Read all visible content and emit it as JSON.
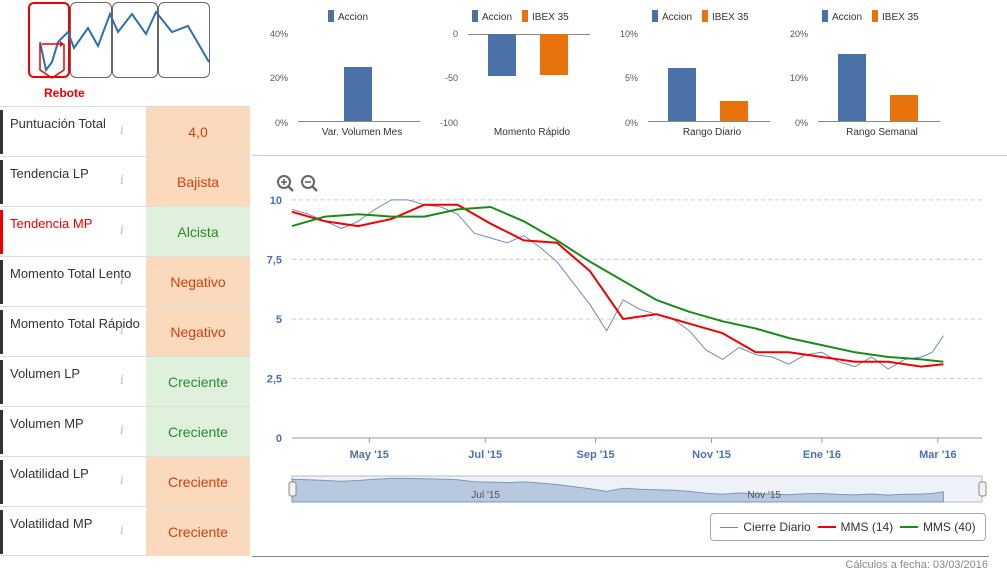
{
  "patterns": {
    "active_label": "Rebote"
  },
  "rating_rows": [
    {
      "label": "Puntuación Total",
      "value": "4,0",
      "tone": "neg",
      "highlight": false
    },
    {
      "label": "Tendencia LP",
      "value": "Bajista",
      "tone": "neg",
      "highlight": false
    },
    {
      "label": "Tendencia MP",
      "value": "Alcista",
      "tone": "pos",
      "highlight": true
    },
    {
      "label": "Momento Total Lento",
      "value": "Negativo",
      "tone": "neg",
      "highlight": false
    },
    {
      "label": "Momento Total Rápido",
      "value": "Negativo",
      "tone": "neg",
      "highlight": false
    },
    {
      "label": "Volumen LP",
      "value": "Creciente",
      "tone": "pos",
      "highlight": false
    },
    {
      "label": "Volumen MP",
      "value": "Creciente",
      "tone": "pos",
      "highlight": false
    },
    {
      "label": "Volatilidad LP",
      "value": "Creciente",
      "tone": "neg",
      "highlight": false
    },
    {
      "label": "Volatilidad MP",
      "value": "Creciente",
      "tone": "neg",
      "highlight": false
    }
  ],
  "info_icon": "i",
  "colors": {
    "accion": "#4a72a8",
    "ibex": "#e8720c",
    "red": "#e00",
    "green": "#1a8a1a",
    "price": "#6e8bb5"
  },
  "mini_charts": [
    {
      "title": "Var. Volumen Mes",
      "legend": [
        "Accion"
      ],
      "ticks": [
        "40%",
        "20%",
        "0%"
      ],
      "ymin": 0,
      "ymax": 40,
      "values": [
        25
      ]
    },
    {
      "title": "Momento Rápido",
      "legend": [
        "Accion",
        "IBEX 35"
      ],
      "ticks": [
        "0",
        "-50",
        "-100"
      ],
      "ymin": -100,
      "ymax": 0,
      "values": [
        -48,
        -47
      ]
    },
    {
      "title": "Rango Diario",
      "legend": [
        "Accion",
        "IBEX 35"
      ],
      "ticks": [
        "10%",
        "5%",
        "0%"
      ],
      "ymin": 0,
      "ymax": 10,
      "values": [
        6.1,
        2.3
      ]
    },
    {
      "title": "Rango Semanal",
      "legend": [
        "Accion",
        "IBEX 35"
      ],
      "ticks": [
        "20%",
        "10%",
        "0%"
      ],
      "ymin": 0,
      "ymax": 20,
      "values": [
        15.5,
        6
      ]
    }
  ],
  "chart_data": {
    "type": "line",
    "y_ticks": [
      "10",
      "7,5",
      "5",
      "2,5",
      "0"
    ],
    "y_tick_values": [
      10,
      7.5,
      5,
      2.5,
      0
    ],
    "ylim": [
      0,
      10.5
    ],
    "x_labels": [
      "May '15",
      "Jul '15",
      "Sep '15",
      "Nov '15",
      "Ene '16",
      "Mar '16"
    ],
    "x_label_pos": [
      1.4,
      3.5,
      5.5,
      7.6,
      9.6,
      11.7
    ],
    "xlim": [
      0,
      12.5
    ],
    "series": [
      {
        "name": "Cierre Diario",
        "x": [
          0,
          0.3,
          0.6,
          0.9,
          1.2,
          1.5,
          1.8,
          2.1,
          2.4,
          2.7,
          3.0,
          3.3,
          3.6,
          3.9,
          4.2,
          4.5,
          4.8,
          5.1,
          5.4,
          5.7,
          6.0,
          6.3,
          6.6,
          6.9,
          7.2,
          7.5,
          7.8,
          8.1,
          8.4,
          8.7,
          9.0,
          9.3,
          9.6,
          9.9,
          10.2,
          10.5,
          10.8,
          11.1,
          11.4,
          11.6,
          11.8
        ],
        "values": [
          9.6,
          9.4,
          9.1,
          8.8,
          9.1,
          9.6,
          10.0,
          10.0,
          9.8,
          9.7,
          9.4,
          8.6,
          8.4,
          8.2,
          8.5,
          8.0,
          7.4,
          6.5,
          5.6,
          4.5,
          5.8,
          5.4,
          5.2,
          5.0,
          4.5,
          3.7,
          3.3,
          3.8,
          3.5,
          3.4,
          3.1,
          3.5,
          3.6,
          3.2,
          3.0,
          3.4,
          2.9,
          3.3,
          3.4,
          3.6,
          4.3
        ]
      },
      {
        "name": "MMS (14)",
        "x": [
          0,
          0.6,
          1.2,
          1.8,
          2.4,
          3.0,
          3.6,
          4.2,
          4.8,
          5.4,
          6.0,
          6.6,
          7.2,
          7.8,
          8.4,
          9.0,
          9.6,
          10.2,
          10.8,
          11.4,
          11.8
        ],
        "values": [
          9.5,
          9.1,
          8.9,
          9.2,
          9.8,
          9.8,
          9.0,
          8.3,
          8.2,
          7.0,
          5.0,
          5.2,
          4.8,
          4.4,
          3.6,
          3.6,
          3.4,
          3.2,
          3.2,
          3.0,
          3.1
        ]
      },
      {
        "name": "MMS (40)",
        "x": [
          0,
          0.6,
          1.2,
          1.8,
          2.4,
          3.0,
          3.6,
          4.2,
          4.8,
          5.4,
          6.0,
          6.6,
          7.2,
          7.8,
          8.4,
          9.0,
          9.6,
          10.2,
          10.8,
          11.4,
          11.8
        ],
        "values": [
          8.9,
          9.3,
          9.4,
          9.3,
          9.3,
          9.6,
          9.7,
          9.1,
          8.3,
          7.4,
          6.6,
          5.8,
          5.3,
          4.9,
          4.6,
          4.2,
          3.9,
          3.6,
          3.4,
          3.3,
          3.2
        ]
      }
    ]
  },
  "navigator": {
    "labels": [
      "Jul '15",
      "Nov '15"
    ],
    "label_pos": [
      0.26,
      0.66
    ]
  },
  "legend": [
    "Cierre Diario",
    "MMS (14)",
    "MMS (40)"
  ],
  "footer": "Cálculos a fecha: 03/03/2016"
}
